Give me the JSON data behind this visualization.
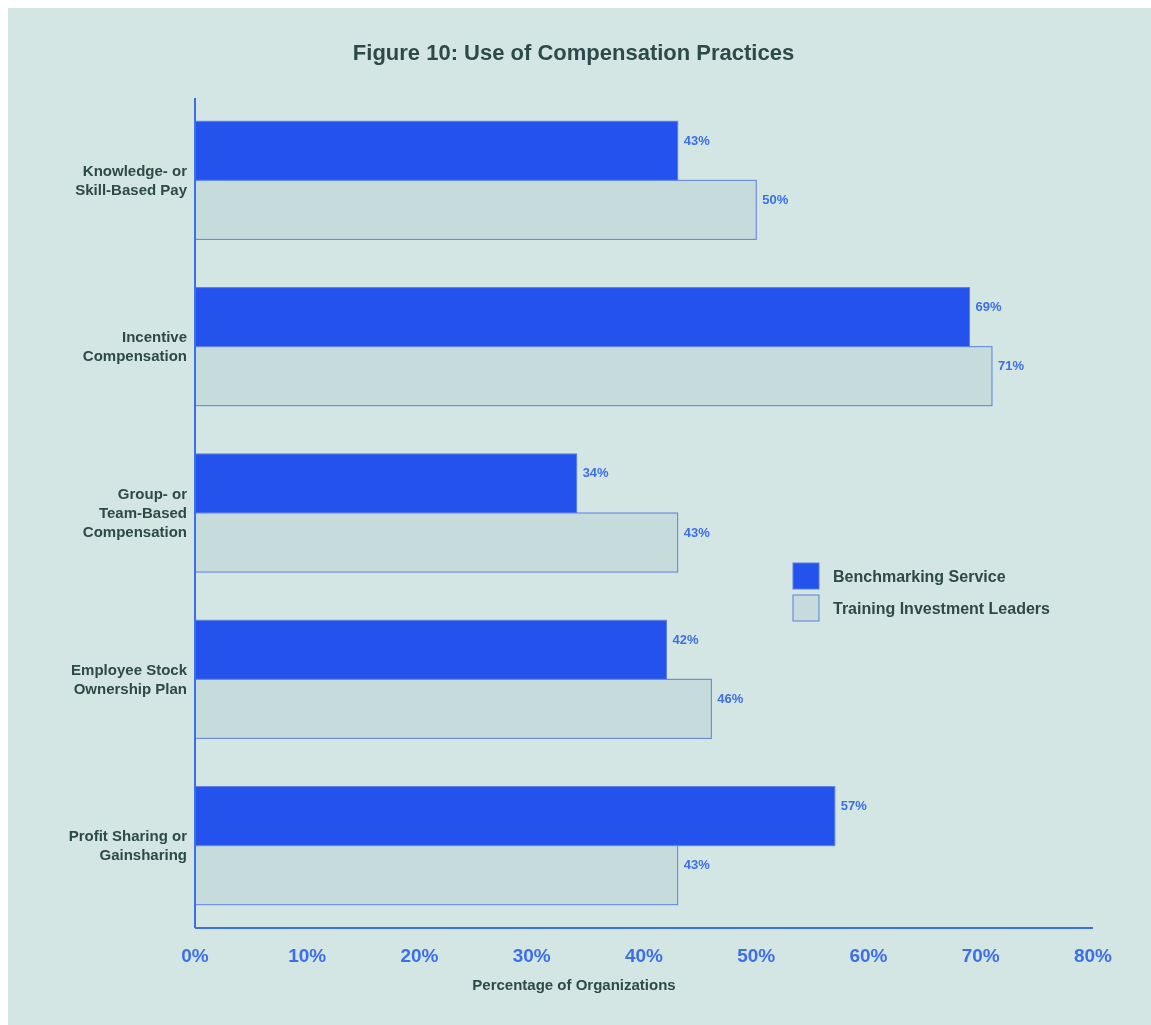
{
  "chart_data": {
    "type": "bar",
    "orientation": "horizontal",
    "title": "Figure 10: Use of Compensation Practices",
    "xlabel": "Percentage of Organizations",
    "categories": [
      "Knowledge- or\nSkill-Based Pay",
      "Incentive\nCompensation",
      "Group- or\nTeam-Based\nCompensation",
      "Employee Stock\nOwnership Plan",
      "Profit Sharing or\nGainsharing"
    ],
    "series": [
      {
        "name": "Benchmarking Service",
        "color": "#2352ec",
        "values": [
          43,
          69,
          34,
          42,
          57
        ],
        "value_labels": [
          "43%",
          "69%",
          "34%",
          "42%",
          "57%"
        ]
      },
      {
        "name": "Training Investment Leaders",
        "color": "#c6dcdc",
        "values": [
          50,
          71,
          43,
          46,
          43
        ],
        "value_labels": [
          "50%",
          "71%",
          "43%",
          "46%",
          "43%"
        ]
      }
    ],
    "xlim": [
      0,
      80
    ],
    "xticks": [
      {
        "value": 0,
        "label": "0%"
      },
      {
        "value": 10,
        "label": "10%"
      },
      {
        "value": 20,
        "label": "20%"
      },
      {
        "value": 30,
        "label": "30%"
      },
      {
        "value": 40,
        "label": "40%"
      },
      {
        "value": 50,
        "label": "50%"
      },
      {
        "value": 60,
        "label": "60%"
      },
      {
        "value": 70,
        "label": "70%"
      },
      {
        "value": 80,
        "label": "80%"
      }
    ],
    "legend": "right",
    "grid": false
  }
}
